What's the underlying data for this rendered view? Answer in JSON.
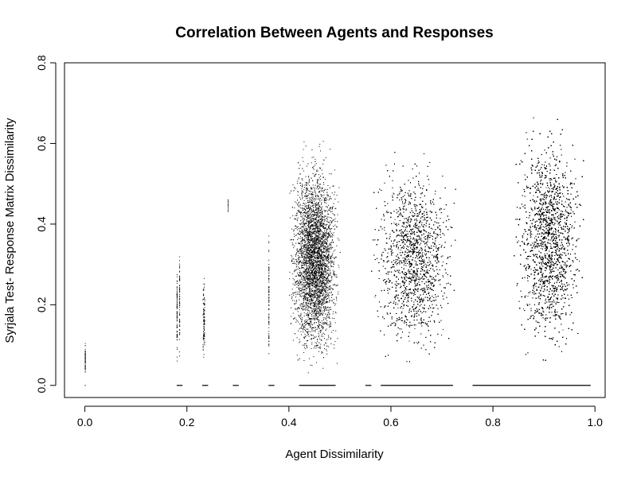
{
  "chart_data": {
    "type": "scatter",
    "title": "Correlation Between Agents and Responses",
    "xlabel": "Agent Dissimilarity",
    "ylabel": "Syrjala Test- Response Matrix Dissimilarity",
    "xlim": [
      -0.04,
      1.02
    ],
    "ylim": [
      -0.03,
      0.8
    ],
    "xticks": [
      0.0,
      0.2,
      0.4,
      0.6,
      0.8,
      1.0
    ],
    "xtick_labels": [
      "0.0",
      "0.2",
      "0.4",
      "0.6",
      "0.8",
      "1.0"
    ],
    "yticks": [
      0.0,
      0.2,
      0.4,
      0.6,
      0.8
    ],
    "ytick_labels": [
      "0.0",
      "0.2",
      "0.4",
      "0.6",
      "0.8"
    ],
    "grid": false,
    "legend": "none",
    "marker_color": "#000000",
    "series": [
      {
        "clusters": [
          {
            "x": [
              0.0,
              0.0
            ],
            "y": [
              0.02,
              0.13
            ],
            "n": 60
          },
          {
            "x": [
              0.18,
              0.18
            ],
            "y": [
              0.03,
              0.36
            ],
            "n": 90
          },
          {
            "x": [
              0.185,
              0.185
            ],
            "y": [
              0.03,
              0.41
            ],
            "n": 70
          },
          {
            "x": [
              0.23,
              0.235
            ],
            "y": [
              0.03,
              0.32
            ],
            "n": 110
          },
          {
            "x": [
              0.28,
              0.28
            ],
            "y": [
              0.42,
              0.48
            ],
            "n": 15
          },
          {
            "x": [
              0.36,
              0.36
            ],
            "y": [
              0.02,
              0.45
            ],
            "n": 80
          },
          {
            "x": [
              0.4,
              0.5
            ],
            "y": [
              0.03,
              0.68
            ],
            "n": 4500
          },
          {
            "x": [
              0.56,
              0.73
            ],
            "y": [
              0.04,
              0.67
            ],
            "n": 6500
          },
          {
            "x": [
              0.84,
              0.98
            ],
            "y": [
              0.04,
              0.77
            ],
            "n": 15000
          }
        ],
        "zero_rows": [
          {
            "x": [
              0.0,
              0.0
            ],
            "y": 0.0
          },
          {
            "x": [
              0.18,
              0.19
            ],
            "y": 0.0
          },
          {
            "x": [
              0.23,
              0.24
            ],
            "y": 0.0
          },
          {
            "x": [
              0.29,
              0.3
            ],
            "y": 0.0
          },
          {
            "x": [
              0.36,
              0.37
            ],
            "y": 0.0
          },
          {
            "x": [
              0.42,
              0.49
            ],
            "y": 0.0
          },
          {
            "x": [
              0.55,
              0.56
            ],
            "y": 0.0
          },
          {
            "x": [
              0.58,
              0.72
            ],
            "y": 0.0
          },
          {
            "x": [
              0.76,
              0.99
            ],
            "y": 0.0
          }
        ]
      }
    ]
  }
}
